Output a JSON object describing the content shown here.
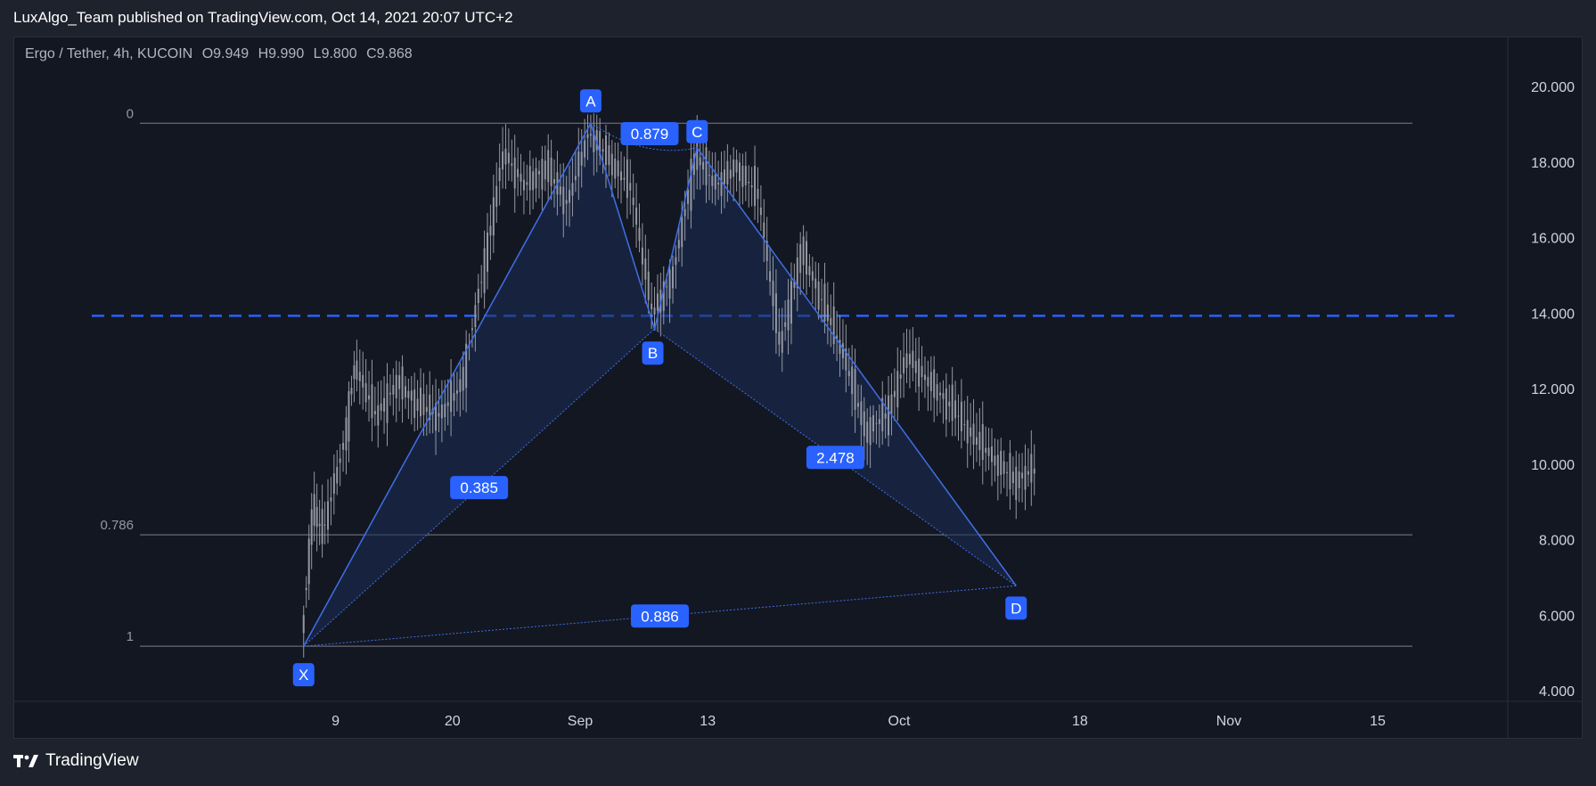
{
  "header": {
    "publisher": "LuxAlgo_Team published on TradingView.com, Oct 14, 2021 20:07 UTC+2"
  },
  "symbol": {
    "name": "Ergo / Tether, 4h, KUCOIN",
    "open": "O9.949",
    "high": "H9.990",
    "low": "L9.800",
    "close": "C9.868"
  },
  "footer": {
    "brand": "TradingView"
  },
  "colors": {
    "background": "#131722",
    "outer": "#1e222d",
    "accent": "#2962ff",
    "line": "#3f6fe8",
    "fill": "#1c2d55",
    "candle": "#9598a1",
    "axis_text": "#d1d4dc",
    "fib_line": "#9598a1"
  },
  "chart_data": {
    "type": "line",
    "title": "Ergo / Tether, 4h, KUCOIN",
    "y_axis": {
      "ticks": [
        20,
        18,
        16,
        14,
        12,
        10,
        8,
        6,
        4
      ],
      "tick_labels": [
        "20.000",
        "18.000",
        "16.000",
        "14.000",
        "12.000",
        "10.000",
        "8.000",
        "6.000",
        "4.000"
      ],
      "ylim": [
        3.8,
        21.3
      ]
    },
    "x_axis": {
      "tick_labels": [
        "9",
        "20",
        "Sep",
        "13",
        "Oct",
        "18",
        "Nov",
        "15"
      ],
      "tick_dates": [
        "2021-08-09",
        "2021-08-20",
        "2021-09-01",
        "2021-09-13",
        "2021-10-01",
        "2021-10-18",
        "2021-11-01",
        "2021-11-15"
      ]
    },
    "fib_levels": [
      {
        "label": "0",
        "value": 19.05
      },
      {
        "label": "0.786",
        "value": 8.15
      },
      {
        "label": "1",
        "value": 5.2
      }
    ],
    "horizontal_level": {
      "value": 13.95,
      "style": "dashed"
    },
    "pattern_points": [
      {
        "label": "X",
        "date": "2021-08-06",
        "value": 5.2
      },
      {
        "label": "A",
        "date": "2021-09-02",
        "value": 19.05
      },
      {
        "label": "B",
        "date": "2021-09-08",
        "value": 13.6
      },
      {
        "label": "C",
        "date": "2021-09-12",
        "value": 18.4
      },
      {
        "label": "D",
        "date": "2021-10-12",
        "value": 6.8
      }
    ],
    "ratios": [
      {
        "label": "0.385",
        "value": 0.385
      },
      {
        "label": "0.879",
        "value": 0.879
      },
      {
        "label": "2.478",
        "value": 2.478
      },
      {
        "label": "0.886",
        "value": 0.886
      }
    ],
    "price_path": [
      {
        "date": "2021-08-06",
        "value": 5.3
      },
      {
        "date": "2021-08-07",
        "value": 8.8
      },
      {
        "date": "2021-08-08",
        "value": 8.2
      },
      {
        "date": "2021-08-10",
        "value": 10.6
      },
      {
        "date": "2021-08-11",
        "value": 12.7
      },
      {
        "date": "2021-08-13",
        "value": 11.3
      },
      {
        "date": "2021-08-15",
        "value": 12.2
      },
      {
        "date": "2021-08-17",
        "value": 11.6
      },
      {
        "date": "2021-08-19",
        "value": 11.3
      },
      {
        "date": "2021-08-21",
        "value": 12.1
      },
      {
        "date": "2021-08-23",
        "value": 15.0
      },
      {
        "date": "2021-08-25",
        "value": 18.3
      },
      {
        "date": "2021-08-27",
        "value": 17.4
      },
      {
        "date": "2021-08-29",
        "value": 17.9
      },
      {
        "date": "2021-08-31",
        "value": 16.9
      },
      {
        "date": "2021-09-02",
        "value": 18.8
      },
      {
        "date": "2021-09-04",
        "value": 18.1
      },
      {
        "date": "2021-09-06",
        "value": 17.3
      },
      {
        "date": "2021-09-08",
        "value": 14.0
      },
      {
        "date": "2021-09-10",
        "value": 15.1
      },
      {
        "date": "2021-09-12",
        "value": 18.2
      },
      {
        "date": "2021-09-14",
        "value": 17.4
      },
      {
        "date": "2021-09-16",
        "value": 17.9
      },
      {
        "date": "2021-09-18",
        "value": 17.1
      },
      {
        "date": "2021-09-20",
        "value": 13.1
      },
      {
        "date": "2021-09-22",
        "value": 15.7
      },
      {
        "date": "2021-09-24",
        "value": 14.3
      },
      {
        "date": "2021-09-26",
        "value": 12.9
      },
      {
        "date": "2021-09-28",
        "value": 10.9
      },
      {
        "date": "2021-09-30",
        "value": 11.3
      },
      {
        "date": "2021-10-02",
        "value": 12.9
      },
      {
        "date": "2021-10-04",
        "value": 12.2
      },
      {
        "date": "2021-10-06",
        "value": 11.6
      },
      {
        "date": "2021-10-08",
        "value": 10.8
      },
      {
        "date": "2021-10-10",
        "value": 10.2
      },
      {
        "date": "2021-10-12",
        "value": 9.6
      },
      {
        "date": "2021-10-14",
        "value": 9.87
      }
    ]
  }
}
